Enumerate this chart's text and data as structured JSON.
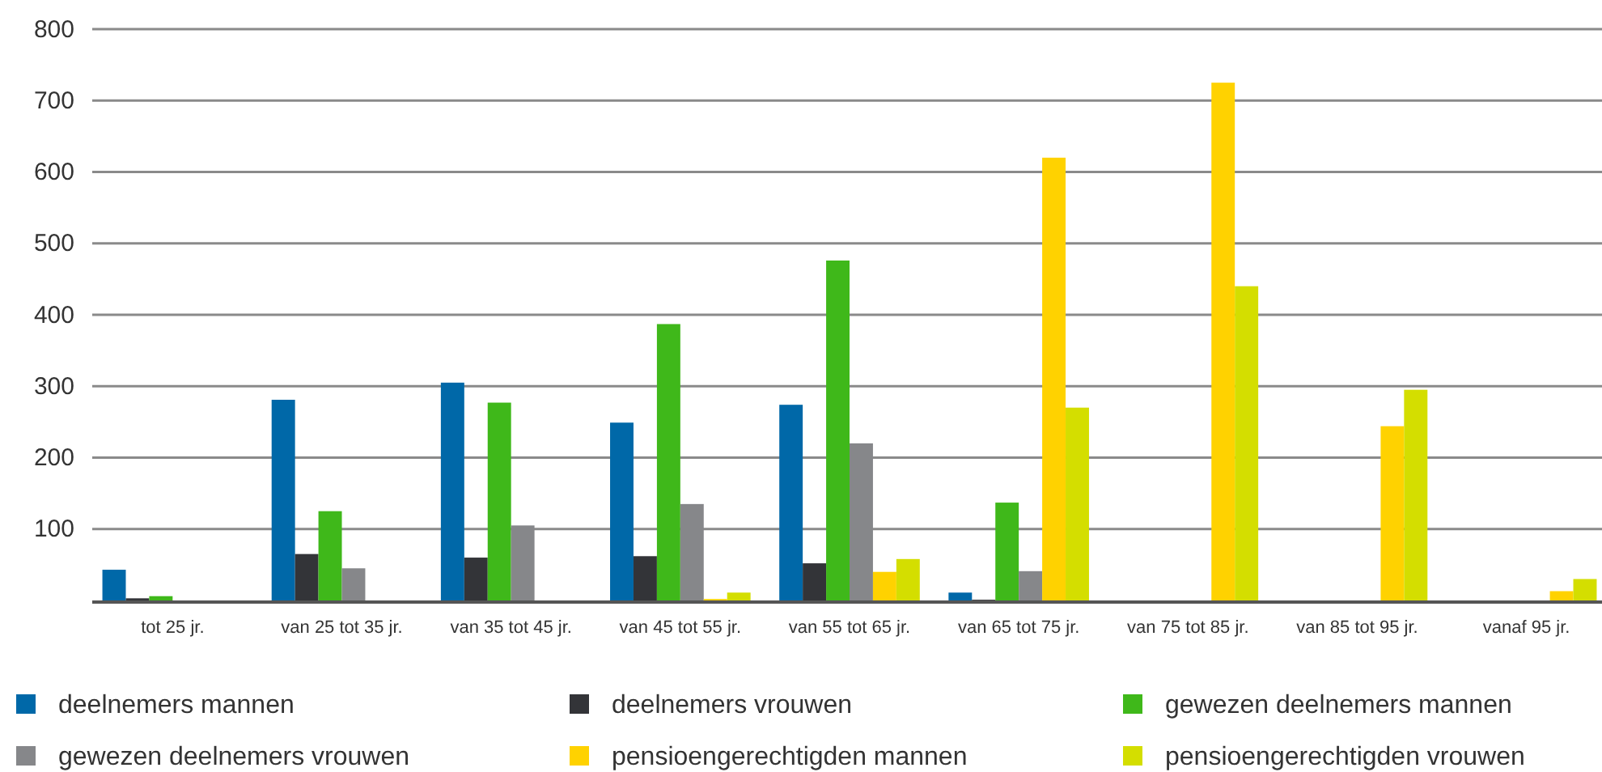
{
  "chart_data": {
    "type": "bar",
    "categories": [
      "tot 25 jr.",
      "van 25 tot 35 jr.",
      "van 35 tot 45 jr.",
      "van 45 tot 55 jr.",
      "van 55 tot 65 jr.",
      "van 65 tot 75 jr.",
      "van 75 tot 85 jr.",
      "van 85 tot 95 jr.",
      "vanaf 95 jr."
    ],
    "series": [
      {
        "name": "deelnemers mannen",
        "color": "#0068a8",
        "values": [
          43,
          281,
          305,
          249,
          274,
          11,
          0,
          0,
          0
        ]
      },
      {
        "name": "deelnemers vrouwen",
        "color": "#333438",
        "values": [
          3,
          65,
          60,
          62,
          52,
          1,
          0,
          0,
          0
        ]
      },
      {
        "name": "gewezen deelnemers mannen",
        "color": "#3fb81a",
        "values": [
          6,
          125,
          277,
          387,
          476,
          137,
          0,
          0,
          0
        ]
      },
      {
        "name": "gewezen deelnemers vrouwen",
        "color": "#86878a",
        "values": [
          0,
          45,
          105,
          135,
          220,
          41,
          0,
          0,
          0
        ]
      },
      {
        "name": "pensioengerechtigden mannen",
        "color": "#ffd200",
        "values": [
          0,
          0,
          0,
          2,
          40,
          620,
          725,
          244,
          13
        ]
      },
      {
        "name": "pensioengerechtigden vrouwen",
        "color": "#d4de00",
        "values": [
          0,
          0,
          0,
          11,
          58,
          270,
          440,
          295,
          30
        ]
      }
    ],
    "ylim": [
      0,
      800
    ],
    "yticks": [
      100,
      200,
      300,
      400,
      500,
      600,
      700,
      800
    ],
    "grid": "y",
    "legend": "bottom"
  }
}
